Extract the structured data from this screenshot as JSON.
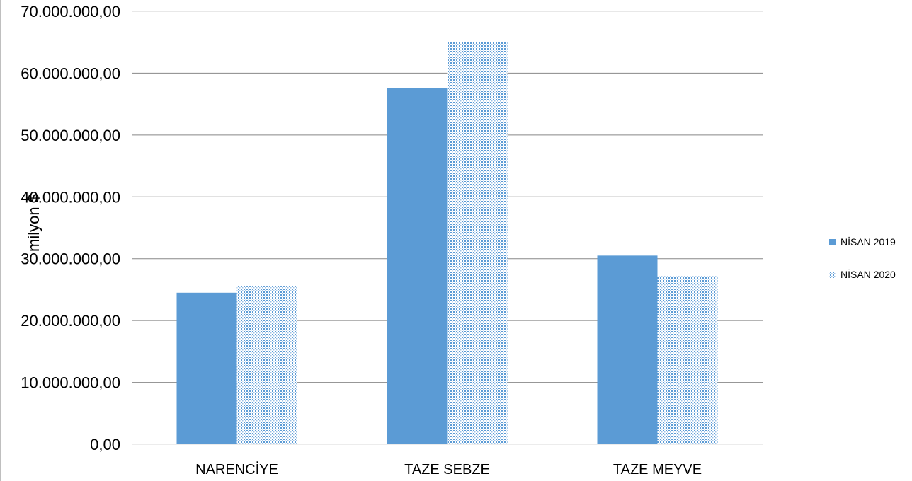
{
  "chart_data": {
    "type": "bar",
    "categories": [
      "NARENCİYE",
      "TAZE SEBZE",
      "TAZE MEYVE"
    ],
    "series": [
      {
        "name": "NİSAN 2019",
        "values": [
          24500000,
          57600000,
          30500000
        ],
        "color": "#5b9bd5",
        "pattern": "solid"
      },
      {
        "name": "NİSAN 2020",
        "values": [
          25500000,
          65000000,
          27200000
        ],
        "color": "#5b9bd5",
        "pattern": "dotted"
      }
    ],
    "ylabel": "milyon $",
    "ylim": [
      0,
      70000000
    ],
    "yticks": [
      "0,00",
      "10.000.000,00",
      "20.000.000,00",
      "30.000.000,00",
      "40.000.000,00",
      "50.000.000,00",
      "60.000.000,00",
      "70.000.000,00"
    ],
    "grid": true,
    "legend_position": "right"
  }
}
